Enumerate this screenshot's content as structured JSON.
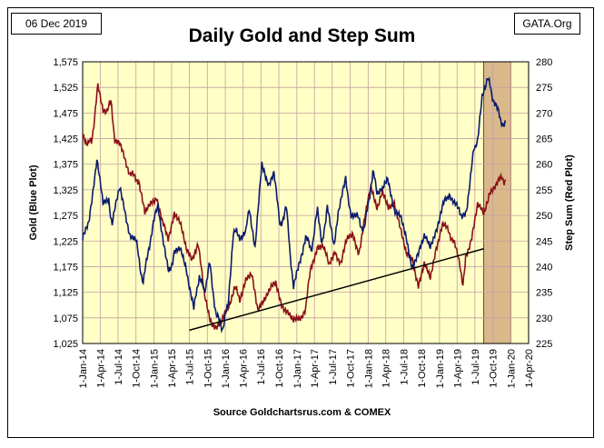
{
  "header": {
    "date": "06 Dec 2019",
    "brand": "GATA.Org",
    "title": "Daily Gold and Step Sum",
    "source": "Source Goldchartsrus.com & COMEX"
  },
  "colors": {
    "plot_bg": "#ffffc6",
    "shaded_region": "#d9b98a",
    "gold_series": "#0b1a6b",
    "step_sum_series": "#8b1018",
    "trendline": "#000000",
    "grid": "#c2a0a0"
  },
  "chart_data": {
    "type": "line",
    "title": "Daily Gold and Step Sum",
    "xlabel": "",
    "ylabel": "Gold   (Blue Plot)",
    "y2label": "Step Sum   (Red Plot)",
    "xlim": [
      "2014-01-01",
      "2020-04-01"
    ],
    "ylim": [
      1025,
      1575
    ],
    "y2lim": [
      225,
      280
    ],
    "x_tick_labels": [
      "1-Jan-14",
      "1-Apr-14",
      "1-Jul-14",
      "1-Oct-14",
      "1-Jan-15",
      "1-Apr-15",
      "1-Jul-15",
      "1-Oct-15",
      "1-Jan-16",
      "1-Apr-16",
      "1-Jul-16",
      "1-Oct-16",
      "1-Jan-17",
      "1-Apr-17",
      "1-Jul-17",
      "1-Oct-17",
      "1-Jan-18",
      "1-Apr-18",
      "1-Jul-18",
      "1-Oct-18",
      "1-Jan-19",
      "1-Apr-19",
      "1-Jul-19",
      "1-Oct-19",
      "1-Jan-20",
      "1-Apr-20"
    ],
    "y_ticks": [
      1025,
      1075,
      1125,
      1175,
      1225,
      1275,
      1325,
      1375,
      1425,
      1475,
      1525,
      1575
    ],
    "y_tick_labels": [
      "1,025",
      "1,075",
      "1,125",
      "1,175",
      "1,225",
      "1,275",
      "1,325",
      "1,375",
      "1,425",
      "1,475",
      "1,525",
      "1,575"
    ],
    "y2_ticks": [
      225,
      230,
      235,
      240,
      245,
      250,
      255,
      260,
      265,
      270,
      275,
      280
    ],
    "grid": true,
    "shaded_region": {
      "x": [
        "2019-08-15",
        "2020-01-01"
      ]
    },
    "trendline": {
      "x": [
        "2015-07-01",
        "2019-08-15"
      ],
      "y2": [
        227.6,
        243.5
      ]
    },
    "series": [
      {
        "name": "Gold",
        "axis": "left",
        "x": [
          "2014-01-01",
          "2014-02-01",
          "2014-03-15",
          "2014-04-15",
          "2014-05-15",
          "2014-06-01",
          "2014-07-10",
          "2014-08-01",
          "2014-09-01",
          "2014-10-01",
          "2014-11-07",
          "2014-12-01",
          "2015-01-22",
          "2015-02-15",
          "2015-03-17",
          "2015-04-15",
          "2015-05-15",
          "2015-06-15",
          "2015-07-24",
          "2015-08-21",
          "2015-09-15",
          "2015-10-14",
          "2015-11-15",
          "2015-12-17",
          "2016-01-15",
          "2016-02-11",
          "2016-03-15",
          "2016-04-15",
          "2016-05-02",
          "2016-06-01",
          "2016-07-06",
          "2016-08-10",
          "2016-09-06",
          "2016-10-07",
          "2016-11-08",
          "2016-12-15",
          "2017-01-15",
          "2017-02-15",
          "2017-03-15",
          "2017-04-17",
          "2017-05-09",
          "2017-06-06",
          "2017-07-10",
          "2017-08-01",
          "2017-09-08",
          "2017-10-06",
          "2017-11-01",
          "2017-12-12",
          "2018-01-25",
          "2018-02-15",
          "2018-03-15",
          "2018-04-11",
          "2018-05-15",
          "2018-06-15",
          "2018-07-15",
          "2018-08-16",
          "2018-09-15",
          "2018-10-15",
          "2018-11-15",
          "2018-12-15",
          "2019-01-15",
          "2019-02-20",
          "2019-03-15",
          "2019-04-23",
          "2019-05-15",
          "2019-06-05",
          "2019-06-25",
          "2019-07-15",
          "2019-08-07",
          "2019-09-04",
          "2019-09-25",
          "2019-10-15",
          "2019-11-12",
          "2019-12-06"
        ],
        "y": [
          1225,
          1265,
          1385,
          1295,
          1305,
          1255,
          1335,
          1295,
          1235,
          1225,
          1140,
          1205,
          1300,
          1225,
          1160,
          1200,
          1205,
          1175,
          1090,
          1160,
          1125,
          1180,
          1080,
          1055,
          1100,
          1245,
          1235,
          1240,
          1295,
          1215,
          1370,
          1340,
          1355,
          1255,
          1290,
          1130,
          1185,
          1235,
          1205,
          1285,
          1215,
          1295,
          1210,
          1275,
          1345,
          1275,
          1275,
          1245,
          1360,
          1325,
          1320,
          1350,
          1290,
          1270,
          1225,
          1175,
          1200,
          1230,
          1215,
          1250,
          1290,
          1320,
          1300,
          1275,
          1280,
          1330,
          1410,
          1420,
          1500,
          1550,
          1510,
          1495,
          1455,
          1460
        ]
      },
      {
        "name": "Step Sum",
        "axis": "right",
        "x": [
          "2014-01-01",
          "2014-02-15",
          "2014-03-20",
          "2014-04-15",
          "2014-05-25",
          "2014-06-15",
          "2014-08-01",
          "2014-09-01",
          "2014-10-15",
          "2014-11-15",
          "2014-12-15",
          "2015-01-15",
          "2015-02-15",
          "2015-03-15",
          "2015-04-15",
          "2015-05-15",
          "2015-06-15",
          "2015-07-15",
          "2015-08-15",
          "2015-09-15",
          "2015-10-15",
          "2015-11-15",
          "2015-12-15",
          "2016-01-15",
          "2016-02-15",
          "2016-03-15",
          "2016-04-15",
          "2016-05-15",
          "2016-06-15",
          "2016-07-15",
          "2016-08-15",
          "2016-09-15",
          "2016-10-15",
          "2016-11-15",
          "2016-12-15",
          "2017-01-15",
          "2017-02-15",
          "2017-03-15",
          "2017-04-15",
          "2017-05-15",
          "2017-06-15",
          "2017-07-15",
          "2017-08-15",
          "2017-09-15",
          "2017-10-15",
          "2017-11-15",
          "2017-12-15",
          "2018-01-15",
          "2018-02-15",
          "2018-03-15",
          "2018-04-15",
          "2018-05-15",
          "2018-06-15",
          "2018-07-15",
          "2018-08-15",
          "2018-09-15",
          "2018-10-15",
          "2018-11-15",
          "2018-12-15",
          "2019-01-15",
          "2019-02-15",
          "2019-03-15",
          "2019-04-15",
          "2019-05-01",
          "2019-05-15",
          "2019-06-15",
          "2019-07-15",
          "2019-08-15",
          "2019-09-15",
          "2019-10-15",
          "2019-11-15",
          "2019-12-06"
        ],
        "y": [
          265,
          264,
          275,
          270,
          272,
          265,
          262,
          258,
          257,
          250,
          252,
          254,
          248,
          246,
          250,
          248,
          244,
          242,
          244,
          235,
          230,
          228,
          229,
          232,
          236,
          234,
          237,
          238,
          232,
          234,
          235,
          237,
          233,
          231,
          229,
          230,
          232,
          240,
          244,
          244,
          240,
          243,
          241,
          245,
          246,
          243,
          250,
          255,
          252,
          254,
          252,
          253,
          247,
          242,
          242,
          236,
          240,
          238,
          244,
          248,
          247,
          245,
          240,
          237,
          242,
          246,
          252,
          250,
          255,
          256,
          257,
          257
        ]
      }
    ]
  }
}
